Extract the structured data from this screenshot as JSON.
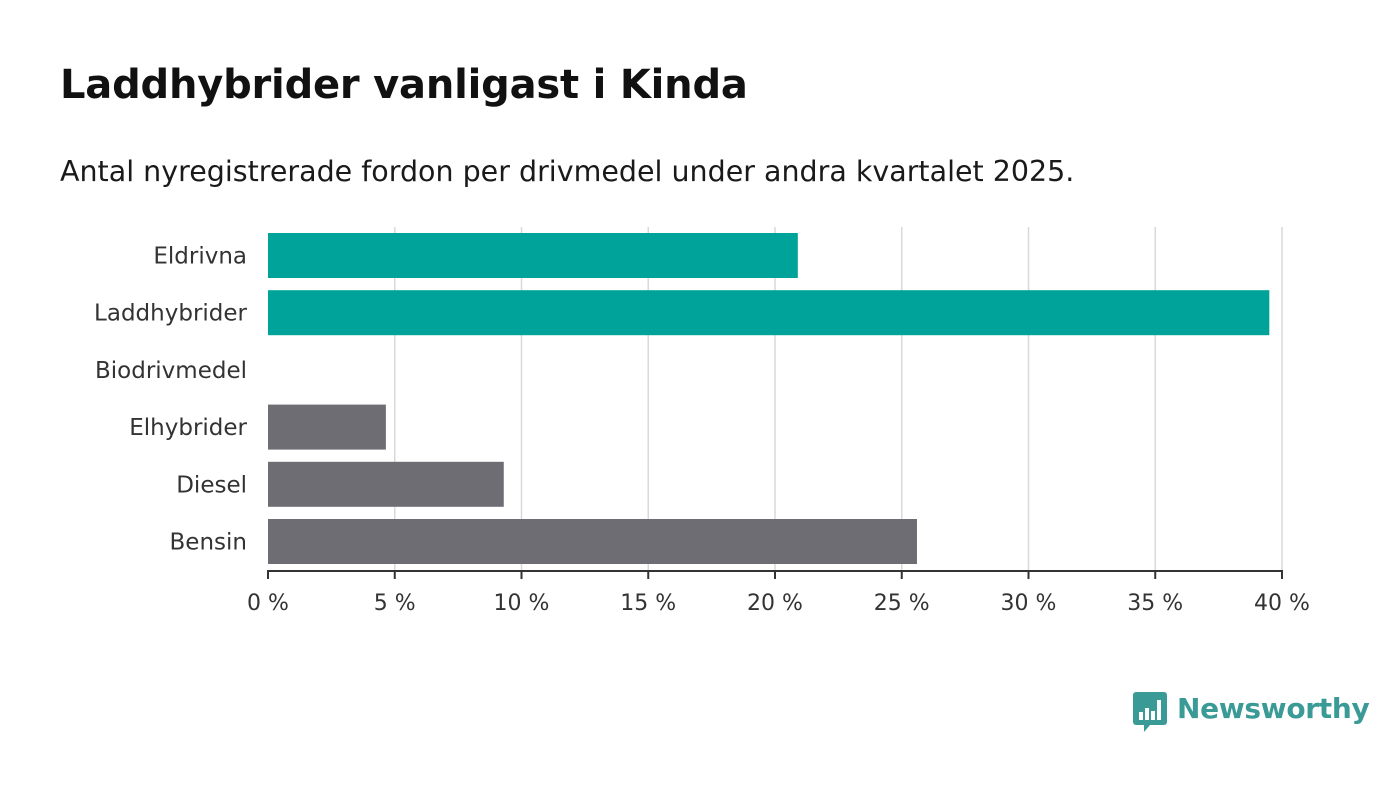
{
  "title": "Laddhybrider vanligast i Kinda",
  "subtitle": "Antal nyregistrerade fordon per drivmedel under andra kvartalet 2025.",
  "brand": {
    "name": "Newsworthy",
    "icon": "bar-chart-speech-bubble-icon",
    "color": "#3a9a96"
  },
  "colors": {
    "highlight": "#00a39a",
    "other": "#6e6d74",
    "grid": "#d9d9d9",
    "axis": "#333333"
  },
  "chart_data": {
    "type": "bar",
    "orientation": "horizontal",
    "categories": [
      "Eldrivna",
      "Laddhybrider",
      "Biodrivmedel",
      "Elhybrider",
      "Diesel",
      "Bensin"
    ],
    "values": [
      20.9,
      39.5,
      0,
      4.65,
      9.3,
      25.6
    ],
    "highlight": [
      true,
      true,
      true,
      false,
      false,
      false
    ],
    "xlim": [
      0,
      40
    ],
    "xticks": [
      0,
      5,
      10,
      15,
      20,
      25,
      30,
      35,
      40
    ],
    "xtick_labels": [
      "0 %",
      "5 %",
      "10 %",
      "15 %",
      "20 %",
      "25 %",
      "30 %",
      "35 %",
      "40 %"
    ],
    "grid": "vertical",
    "xlabel": "",
    "ylabel": ""
  }
}
